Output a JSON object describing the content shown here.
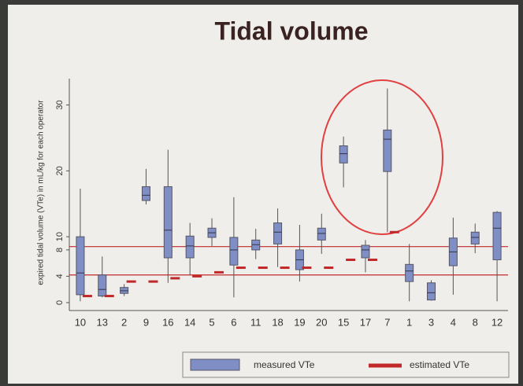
{
  "chart_data": {
    "type": "box",
    "title": "Tidal volume",
    "y_label": "expired tidal volume (VTe) in mL/kg for each operator",
    "categories": [
      "10",
      "13",
      "2",
      "9",
      "16",
      "14",
      "5",
      "6",
      "11",
      "18",
      "19",
      "20",
      "15",
      "17",
      "7",
      "1",
      "3",
      "4",
      "8",
      "12"
    ],
    "series": [
      {
        "name": "measured VTe",
        "color": "#7f8fc6",
        "low": [
          0.2,
          0.8,
          1,
          14.9,
          3,
          4.2,
          8.6,
          0.8,
          6.6,
          5.4,
          3.2,
          7.4,
          17.5,
          4.6,
          10.7,
          0.2,
          0.3,
          1.2,
          7.5,
          0.2
        ],
        "q1": [
          1.2,
          1,
          1.4,
          15.5,
          6.8,
          6.8,
          9.9,
          5.7,
          8,
          8.9,
          5,
          9.5,
          21.2,
          6.8,
          19.9,
          3.2,
          0.4,
          5.6,
          8.9,
          6.5
        ],
        "median": [
          4.5,
          2,
          1.8,
          16.3,
          11,
          8.6,
          10.6,
          8,
          8.8,
          10.7,
          6.5,
          10.5,
          22.6,
          8,
          24.8,
          4.8,
          1.5,
          7.7,
          9.9,
          11.3
        ],
        "q3": [
          10,
          4.2,
          2.3,
          17.6,
          17.6,
          10.1,
          11.3,
          9.9,
          9.5,
          12.1,
          8,
          11.3,
          23.8,
          8.7,
          26.2,
          5.8,
          3,
          9.8,
          10.7,
          13.7
        ],
        "high": [
          17.3,
          7,
          2.8,
          20.3,
          23.2,
          12.1,
          12.8,
          16,
          11.2,
          14.3,
          11.8,
          13.5,
          25.2,
          9.5,
          32.5,
          8.9,
          3.4,
          12.9,
          12,
          13.9
        ]
      },
      {
        "name": "estimated VTe",
        "color": "#c0282a",
        "values": [
          1,
          1,
          3.2,
          3.2,
          3.7,
          4,
          4.6,
          5.3,
          5.3,
          5.3,
          5.3,
          5.3,
          6.5,
          6.5,
          10.7,
          null,
          null,
          null,
          null,
          null
        ]
      }
    ],
    "reference_lines": [
      8.5,
      4.2
    ],
    "reference_color": "#c0282a",
    "ylim": [
      -1.2,
      34
    ],
    "yticks": [
      0,
      4,
      8,
      10,
      20,
      30
    ]
  }
}
